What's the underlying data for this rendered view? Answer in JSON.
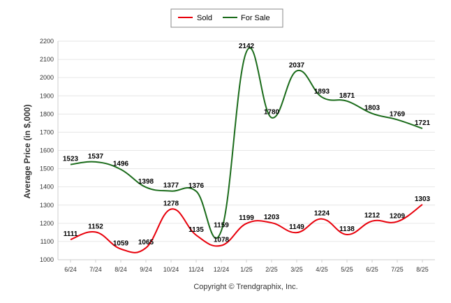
{
  "chart_data": {
    "type": "line",
    "ylabel": "Average Price (in $,000)",
    "xlabel": "",
    "ylim": [
      1000,
      2200
    ],
    "yticks": [
      "1000",
      "1100",
      "1200",
      "1300",
      "1400",
      "1500",
      "1600",
      "1700",
      "1800",
      "1900",
      "2000",
      "2100",
      "2200"
    ],
    "categories": [
      "6/24",
      "7/24",
      "8/24",
      "9/24",
      "10/24",
      "11/24",
      "12/24",
      "1/25",
      "2/25",
      "3/25",
      "4/25",
      "5/25",
      "6/25",
      "7/25",
      "8/25"
    ],
    "series": [
      {
        "name": "Sold",
        "color": "#e8000b",
        "values": [
          1111,
          1152,
          1059,
          1065,
          1278,
          1135,
          1078,
          1199,
          1203,
          1149,
          1224,
          1138,
          1212,
          1209,
          1303
        ]
      },
      {
        "name": "For Sale",
        "color": "#1a6b1a",
        "values": [
          1523,
          1537,
          1496,
          1398,
          1377,
          1376,
          1159,
          2142,
          1780,
          2037,
          1893,
          1871,
          1803,
          1769,
          1721
        ]
      }
    ],
    "legend_position": "top-center",
    "grid": true
  },
  "footer": {
    "copyright": "Copyright © Trendgraphix, Inc."
  }
}
